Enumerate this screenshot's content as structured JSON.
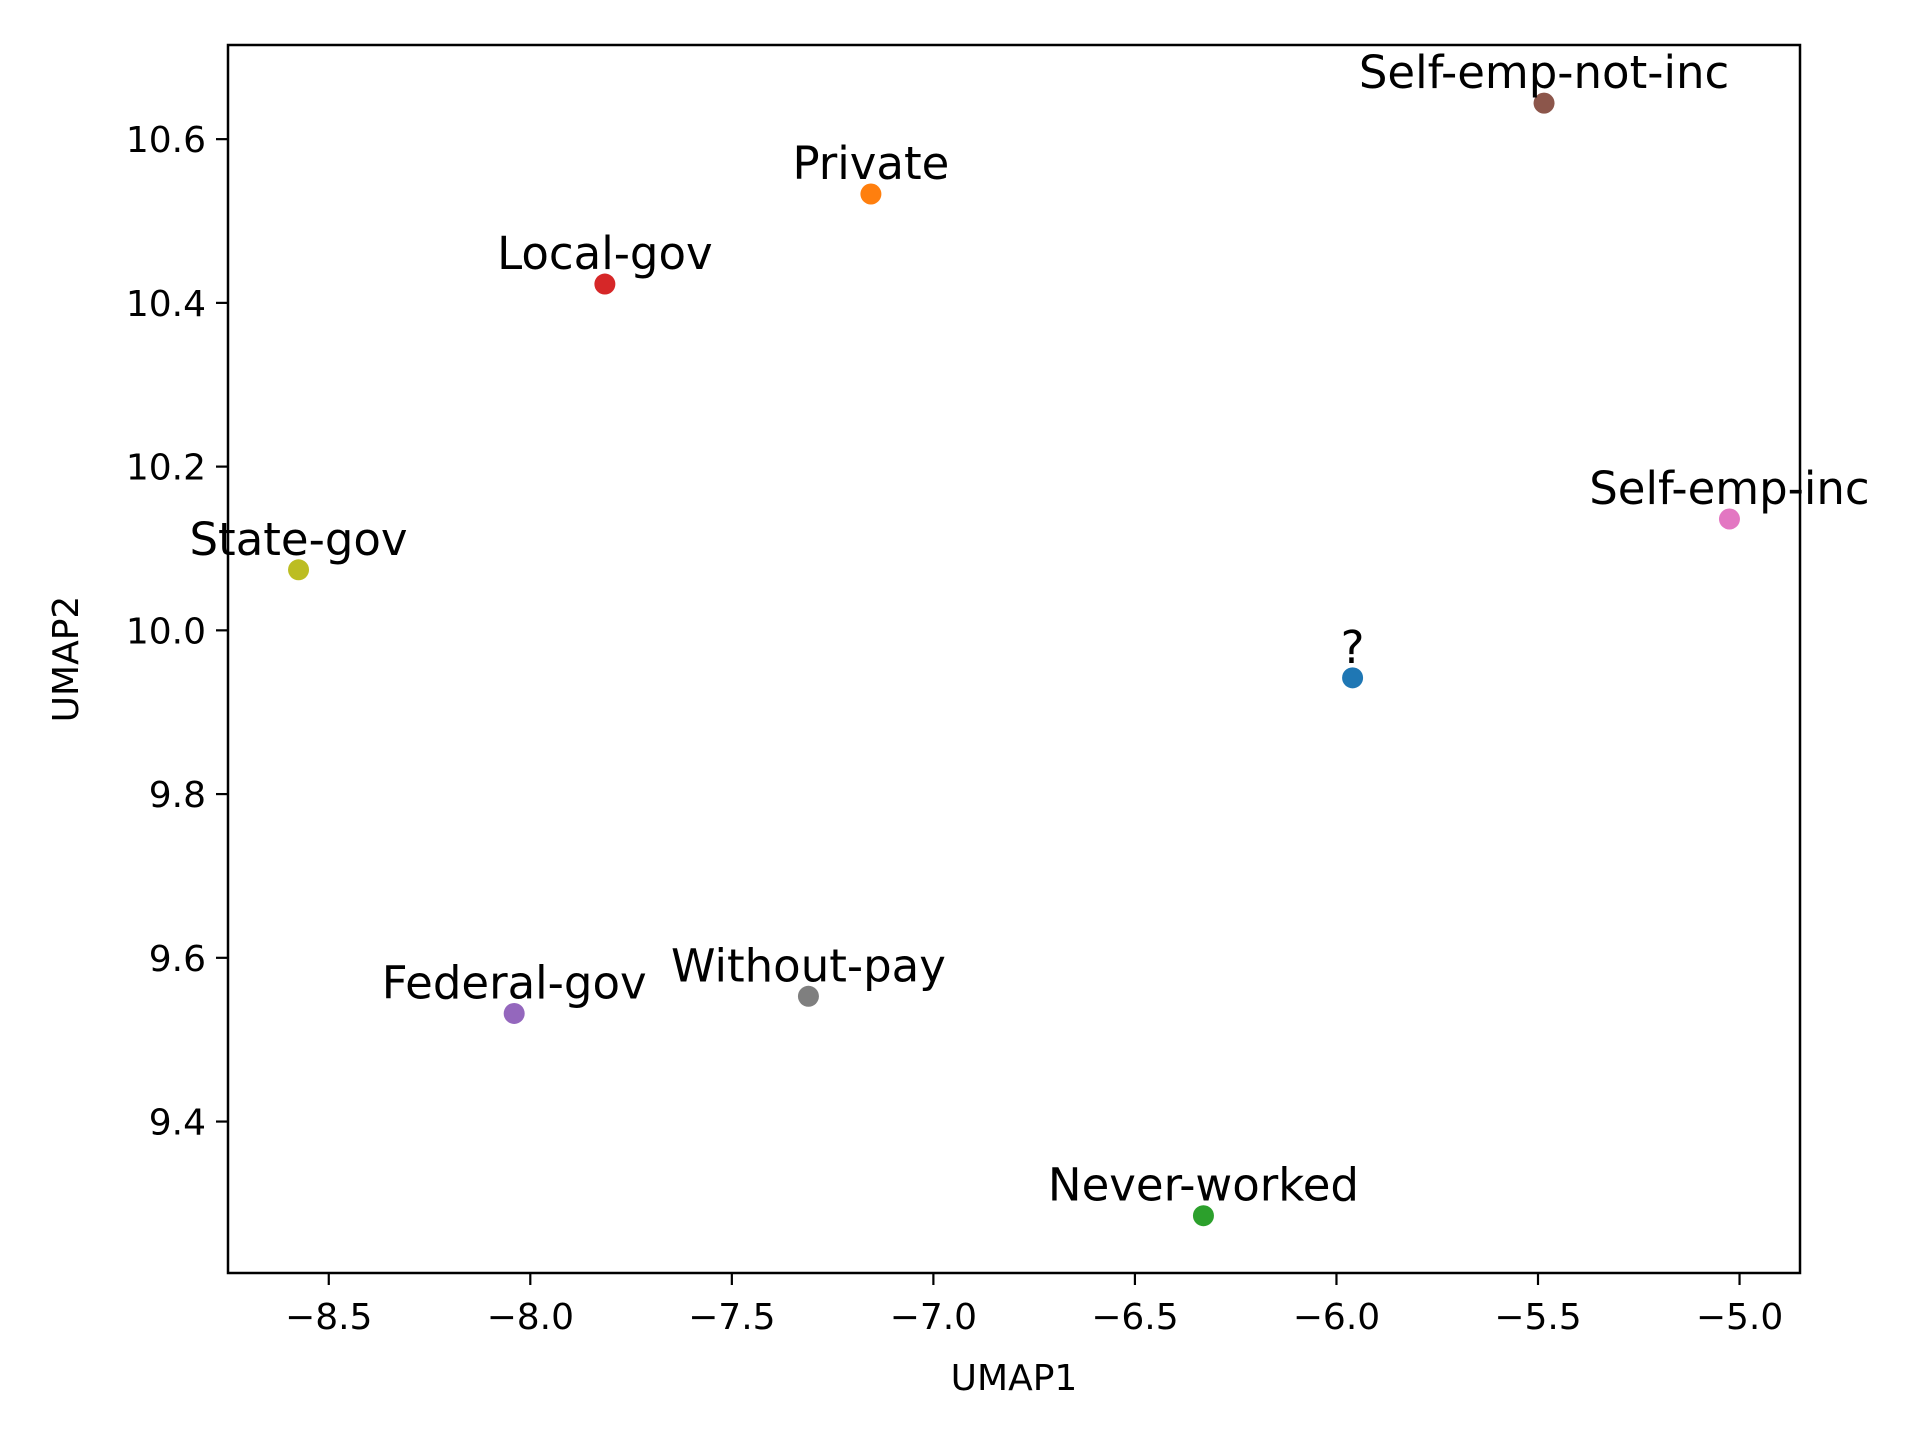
{
  "chart_data": {
    "type": "scatter",
    "title": "",
    "xlabel": "UMAP1",
    "ylabel": "UMAP2",
    "xlim": [
      -8.75,
      -4.85
    ],
    "ylim": [
      9.215,
      10.715
    ],
    "xticks": [
      -8.5,
      -8.0,
      -7.5,
      -7.0,
      -6.5,
      -6.0,
      -5.5,
      -5.0
    ],
    "xtick_labels": [
      "−8.5",
      "−8.0",
      "−7.5",
      "−7.0",
      "−6.5",
      "−6.0",
      "−5.5",
      "−5.0"
    ],
    "yticks": [
      9.4,
      9.6,
      9.8,
      10.0,
      10.2,
      10.4,
      10.6
    ],
    "ytick_labels": [
      "9.4",
      "9.6",
      "9.8",
      "10.0",
      "10.2",
      "10.4",
      "10.6"
    ],
    "grid": false,
    "legend": "none",
    "points": [
      {
        "label": "?",
        "x": -5.96,
        "y": 9.942,
        "color": "#1f77b4"
      },
      {
        "label": "Private",
        "x": -7.155,
        "y": 10.533,
        "color": "#ff7f0e"
      },
      {
        "label": "Never-worked",
        "x": -6.33,
        "y": 9.285,
        "color": "#2ca02c"
      },
      {
        "label": "Local-gov",
        "x": -7.815,
        "y": 10.423,
        "color": "#d62728"
      },
      {
        "label": "Federal-gov",
        "x": -8.04,
        "y": 9.532,
        "color": "#9467bd"
      },
      {
        "label": "Self-emp-not-inc",
        "x": -5.485,
        "y": 10.644,
        "color": "#8c564b"
      },
      {
        "label": "Self-emp-inc",
        "x": -5.025,
        "y": 10.136,
        "color": "#e377c2"
      },
      {
        "label": "Without-pay",
        "x": -7.31,
        "y": 9.553,
        "color": "#7f7f7f"
      },
      {
        "label": "State-gov",
        "x": -8.575,
        "y": 10.074,
        "color": "#bcbd22"
      }
    ]
  }
}
